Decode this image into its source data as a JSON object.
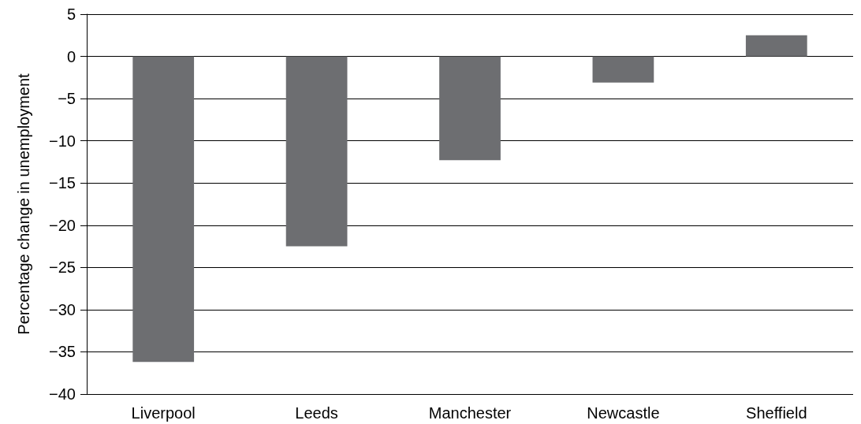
{
  "chart_data": {
    "type": "bar",
    "ylabel": "Percentage change in unemployment",
    "categories": [
      "Liverpool",
      "Leeds",
      "Manchester",
      "Newcastle",
      "Sheffield"
    ],
    "values": [
      -36.2,
      -22.5,
      -12.3,
      -3.1,
      2.5
    ],
    "color": "#6d6e71",
    "ylim": [
      -40,
      5
    ],
    "yticks": [
      {
        "value": -40,
        "label": "−40"
      },
      {
        "value": -35,
        "label": "−35"
      },
      {
        "value": -30,
        "label": "−30"
      },
      {
        "value": -25,
        "label": "−25"
      },
      {
        "value": -20,
        "label": "−20"
      },
      {
        "value": -15,
        "label": "−15"
      },
      {
        "value": -10,
        "label": "−10"
      },
      {
        "value": -5,
        "label": "−5"
      },
      0,
      5
    ],
    "grid": "y"
  }
}
